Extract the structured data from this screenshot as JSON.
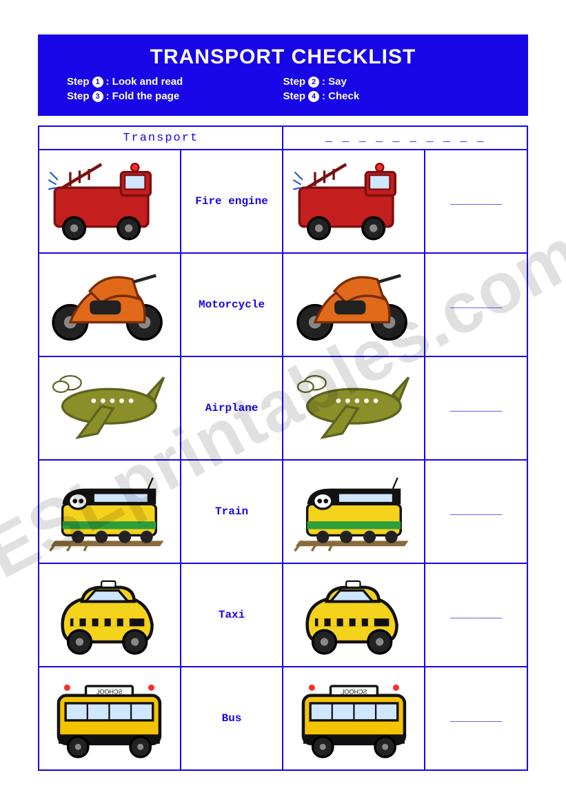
{
  "header": {
    "title": "TRANSPORT CHECKLIST",
    "steps": [
      {
        "num": "1",
        "label": ": Look and read"
      },
      {
        "num": "2",
        "label": ": Say"
      },
      {
        "num": "3",
        "label": ": Fold the page"
      },
      {
        "num": "4",
        "label": ": Check"
      }
    ],
    "step_prefix": "Step"
  },
  "table": {
    "header_left": "Transport",
    "header_right": "_ _ _ _ _ _ _ _ _ _",
    "blank_text": "_________",
    "rows": [
      {
        "label": "Fire engine",
        "icon": "fire-engine"
      },
      {
        "label": "Motorcycle",
        "icon": "motorcycle"
      },
      {
        "label": "Airplane",
        "icon": "airplane"
      },
      {
        "label": "Train",
        "icon": "train"
      },
      {
        "label": "Taxi",
        "icon": "taxi"
      },
      {
        "label": "Bus",
        "icon": "bus"
      }
    ]
  },
  "colors": {
    "primary": "#1806e6",
    "white": "#ffffff",
    "fire_engine_body": "#c41e1e",
    "fire_engine_dark": "#7a1010",
    "motorcycle_body": "#e06a1a",
    "motorcycle_dark": "#222222",
    "airplane_body": "#8a8f2a",
    "airplane_dark": "#5f6320",
    "train_body": "#f5d21b",
    "train_dark": "#111111",
    "train_green": "#2e9e3a",
    "taxi_body": "#f5d21b",
    "taxi_dark": "#111111",
    "bus_body": "#f5c400",
    "bus_dark": "#111111"
  },
  "watermark": "ESLprintables.com"
}
